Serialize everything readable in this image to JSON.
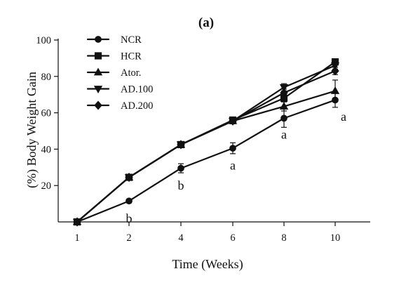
{
  "chart_data": {
    "type": "line",
    "title": "(a)",
    "xlabel": "Time (Weeks)",
    "ylabel": "(%) Body Weight Gain",
    "x": [
      "1",
      "2",
      "4",
      "6",
      "8",
      "10"
    ],
    "ylim": [
      0,
      100
    ],
    "yticks": [
      "20",
      "40",
      "60",
      "80",
      "100"
    ],
    "grid": false,
    "legend_position": "top-left",
    "series": [
      {
        "name": "NCR",
        "marker": "circle",
        "values": [
          0,
          11.5,
          29.5,
          40.5,
          57,
          67
        ],
        "errors": [
          0,
          1,
          2.5,
          3,
          5,
          4
        ]
      },
      {
        "name": "HCR",
        "marker": "square",
        "values": [
          0,
          24.5,
          42.5,
          56,
          68,
          88
        ],
        "errors": [
          0,
          1,
          1,
          1.5,
          2,
          1.5
        ]
      },
      {
        "name": "Ator.",
        "marker": "triangle-up",
        "values": [
          0,
          24.5,
          42.5,
          55.5,
          63.5,
          72
        ],
        "errors": [
          0,
          1,
          1,
          1.5,
          2.5,
          6
        ]
      },
      {
        "name": "AD.100",
        "marker": "triangle-down",
        "values": [
          0,
          24.5,
          42.5,
          55.5,
          74,
          86
        ],
        "errors": [
          0,
          1,
          1,
          1.5,
          2,
          2
        ]
      },
      {
        "name": "AD.200",
        "marker": "diamond",
        "values": [
          0,
          24.5,
          42.5,
          55.5,
          71,
          83
        ],
        "errors": [
          0,
          1,
          1,
          1.5,
          2,
          2
        ]
      }
    ],
    "annotations": [
      {
        "x": "2",
        "y": 2,
        "text": "b"
      },
      {
        "x": "4",
        "y": 20,
        "text": "b"
      },
      {
        "x": "6",
        "y": 31,
        "text": "a"
      },
      {
        "x": "8",
        "y": 48,
        "text": "a"
      },
      {
        "x": "10",
        "y": 58,
        "text": "a"
      }
    ]
  }
}
